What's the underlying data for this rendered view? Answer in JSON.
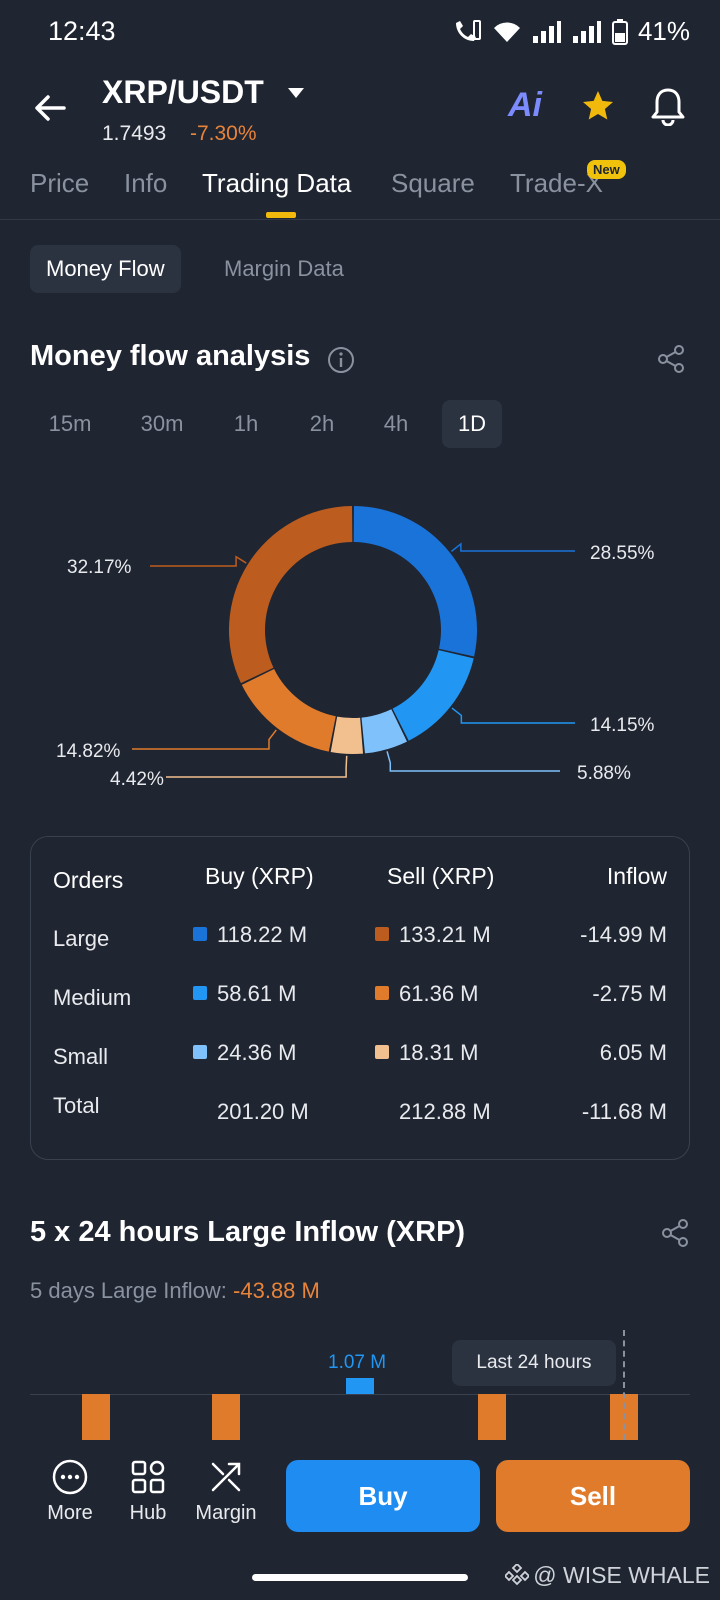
{
  "status": {
    "time": "12:43",
    "battery": "41%"
  },
  "header": {
    "pair": "XRP/USDT",
    "price": "1.7493",
    "change": "-7.30%",
    "ai_label": "Ai"
  },
  "tabs": [
    "Price",
    "Info",
    "Trading Data",
    "Square",
    "Trade-X"
  ],
  "tab_badge": "New",
  "subtabs": [
    "Money Flow",
    "Margin Data"
  ],
  "money_flow": {
    "title": "Money flow analysis",
    "timeframes": [
      "15m",
      "30m",
      "1h",
      "2h",
      "4h",
      "1D"
    ],
    "active_timeframe": "1D"
  },
  "chart_data": {
    "type": "pie",
    "style": "donut",
    "slices": [
      {
        "label": "Large Buy",
        "value": 28.55,
        "display": "28.55%",
        "color": "#1a73d9"
      },
      {
        "label": "Medium Buy",
        "value": 14.15,
        "display": "14.15%",
        "color": "#2196f3"
      },
      {
        "label": "Small Buy",
        "value": 5.88,
        "display": "5.88%",
        "color": "#7fc1fb"
      },
      {
        "label": "Small Sell",
        "value": 4.42,
        "display": "4.42%",
        "color": "#f2c08f"
      },
      {
        "label": "Medium Sell",
        "value": 14.82,
        "display": "14.82%",
        "color": "#e07b2c"
      },
      {
        "label": "Large Sell",
        "value": 32.17,
        "display": "32.17%",
        "color": "#bd5c1f"
      }
    ]
  },
  "orders_table": {
    "headers": [
      "Orders",
      "Buy (XRP)",
      "Sell (XRP)",
      "Inflow"
    ],
    "rows": [
      {
        "label": "Large",
        "buy": "118.22 M",
        "sell": "133.21 M",
        "inflow": "-14.99 M",
        "buy_color": "#1a73d9",
        "sell_color": "#bd5c1f"
      },
      {
        "label": "Medium",
        "buy": "58.61 M",
        "sell": "61.36 M",
        "inflow": "-2.75 M",
        "buy_color": "#2196f3",
        "sell_color": "#e07b2c"
      },
      {
        "label": "Small",
        "buy": "24.36 M",
        "sell": "18.31 M",
        "inflow": "6.05 M",
        "buy_color": "#7fc1fb",
        "sell_color": "#f2c08f"
      }
    ],
    "total": {
      "label": "Total",
      "buy": "201.20 M",
      "sell": "212.88 M",
      "inflow": "-11.68 M"
    }
  },
  "large_inflow": {
    "title": "5 x 24 hours Large Inflow (XRP)",
    "subtitle_label": "5 days Large Inflow:",
    "subtitle_value": "-43.88 M",
    "positive_bar_label": "1.07 M",
    "tooltip": "Last 24 hours"
  },
  "bottom": {
    "nav": [
      "More",
      "Hub",
      "Margin"
    ],
    "buy": "Buy",
    "sell": "Sell"
  },
  "watermark": "@ WISE WHALE"
}
